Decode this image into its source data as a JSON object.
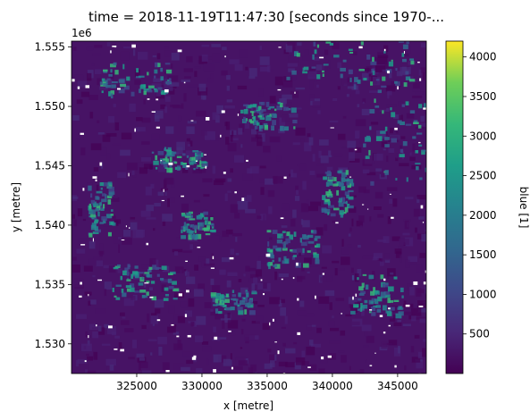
{
  "chart_data": {
    "type": "heatmap",
    "title": "time = 2018-11-19T11:47:30 [seconds since 1970-...",
    "xlabel": "x [metre]",
    "ylabel": "y [metre]",
    "y_offset_label": "1e6",
    "xlim": [
      320000,
      347200
    ],
    "ylim": [
      1.5275,
      1.5555
    ],
    "x_ticks": [
      "325000",
      "330000",
      "335000",
      "340000",
      "345000"
    ],
    "x_tick_values": [
      325000,
      330000,
      335000,
      340000,
      345000
    ],
    "y_ticks": [
      "1.530",
      "1.535",
      "1.540",
      "1.545",
      "1.550",
      "1.555"
    ],
    "y_tick_values": [
      1.53,
      1.535,
      1.54,
      1.545,
      1.55,
      1.555
    ],
    "colorbar": {
      "label": "blue [1]",
      "colormap": "viridis",
      "vmin": 0,
      "vmax": 4200,
      "ticks": [
        "500",
        "1000",
        "1500",
        "2000",
        "2500",
        "3000",
        "3500",
        "4000"
      ],
      "tick_values": [
        500,
        1000,
        1500,
        2000,
        2500,
        3000,
        3500,
        4000
      ]
    },
    "nodata_color": "#ffffff"
  }
}
